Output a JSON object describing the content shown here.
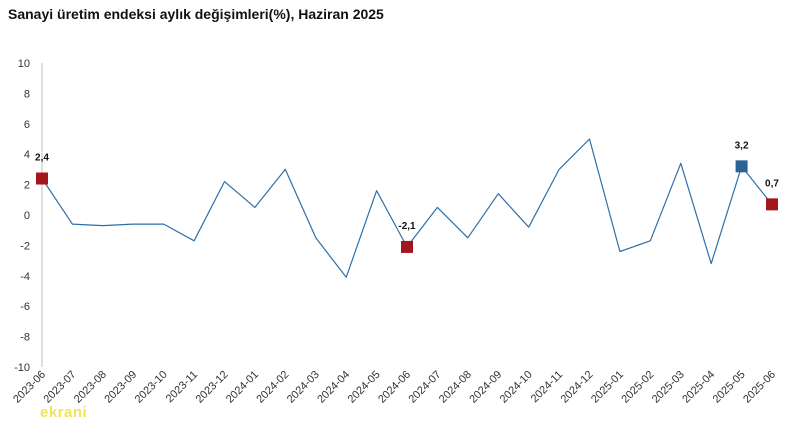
{
  "chart_data": {
    "type": "line",
    "title": "Sanayi üretim endeksi aylık değişimleri(%), Haziran 2025",
    "xlabel": "",
    "ylabel": "",
    "ylim": [
      -10,
      10
    ],
    "yticks": [
      "10",
      "8",
      "6",
      "4",
      "2",
      "0",
      "-2",
      "-4",
      "-6",
      "-8",
      "-10"
    ],
    "categories": [
      "2023-06",
      "2023-07",
      "2023-08",
      "2023-09",
      "2023-10",
      "2023-11",
      "2023-12",
      "2024-01",
      "2024-02",
      "2024-03",
      "2024-04",
      "2024-05",
      "2024-06",
      "2024-07",
      "2024-08",
      "2024-09",
      "2024-10",
      "2024-11",
      "2024-12",
      "2025-01",
      "2025-02",
      "2025-03",
      "2025-04",
      "2025-05",
      "2025-06"
    ],
    "series": [
      {
        "values": [
          2.4,
          -0.6,
          -0.7,
          -0.6,
          -0.6,
          -1.7,
          2.2,
          0.5,
          3.0,
          -1.5,
          -4.1,
          1.6,
          -2.1,
          0.5,
          -1.5,
          1.4,
          -0.8,
          3.0,
          5.0,
          -2.4,
          -1.7,
          3.4,
          -3.2,
          3.2,
          0.7
        ],
        "color": "#2e6fa6"
      }
    ],
    "highlights": [
      {
        "category": "2023-06",
        "value": 2.4,
        "label": "2,4",
        "color": "#a3161d"
      },
      {
        "category": "2024-06",
        "value": -2.1,
        "label": "-2,1",
        "color": "#a3161d"
      },
      {
        "category": "2025-05",
        "value": 3.2,
        "label": "3,2",
        "color": "#2a6496"
      },
      {
        "category": "2025-06",
        "value": 0.7,
        "label": "0,7",
        "color": "#a3161d"
      }
    ],
    "grid": false,
    "legend": "none"
  },
  "watermark": "ekrani"
}
